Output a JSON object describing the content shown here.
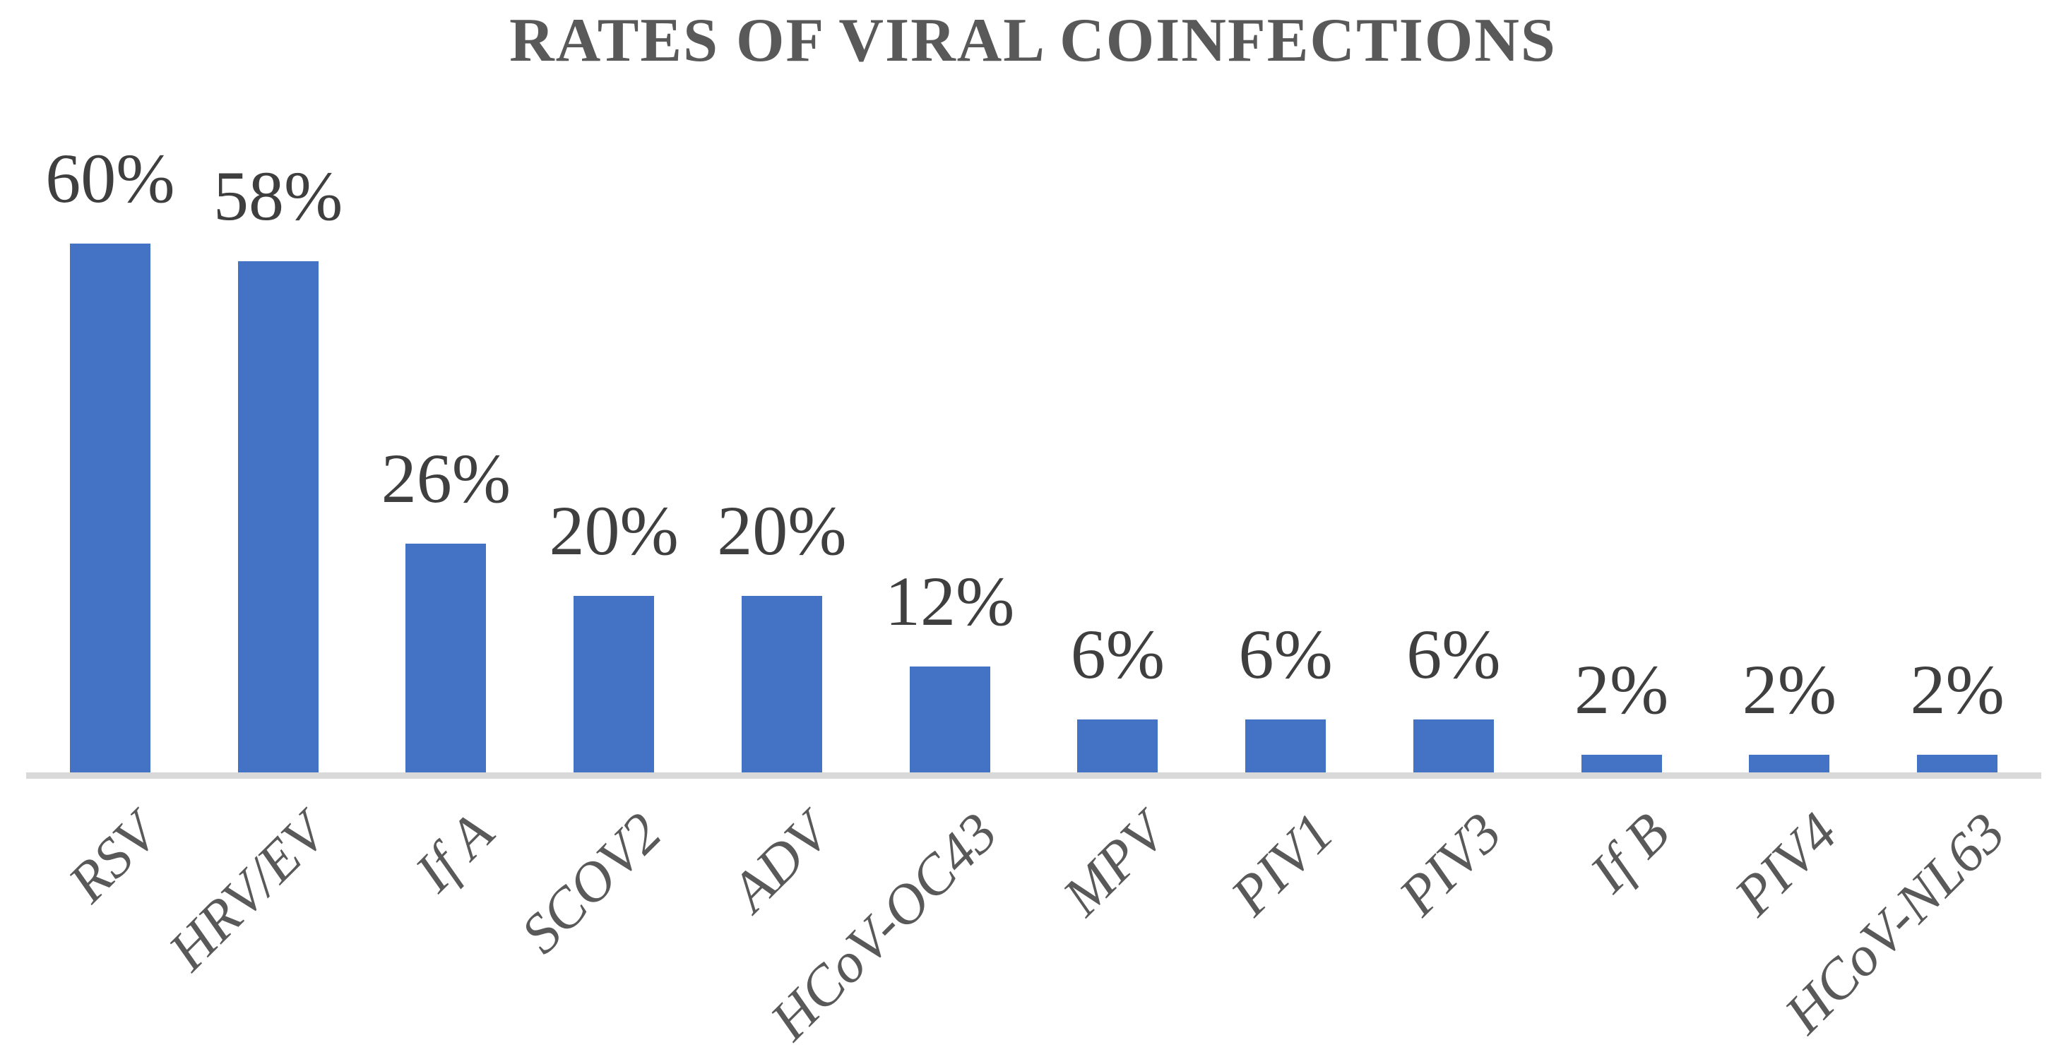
{
  "chart_data": {
    "type": "bar",
    "title": "RATES OF VIRAL COINFECTIONS",
    "categories": [
      "RSV",
      "HRV/EV",
      "If A",
      "SCOV2",
      "ADV",
      "HCoV-OC43",
      "MPV",
      "PIV1",
      "PIV3",
      "If B",
      "PIV4",
      "HCoV-NL63"
    ],
    "values": [
      60,
      58,
      26,
      20,
      20,
      12,
      6,
      6,
      6,
      2,
      2,
      2
    ],
    "value_labels": [
      "60%",
      "58%",
      "26%",
      "20%",
      "20%",
      "12%",
      "6%",
      "6%",
      "6%",
      "2%",
      "2%",
      "2%"
    ],
    "xlabel": "",
    "ylabel": "",
    "ylim": [
      0,
      60
    ],
    "grid": "off",
    "legend": "none",
    "bar_color": "#4472C4",
    "axis_line_color": "#D9D9D9",
    "title_color": "#595959",
    "value_label_color": "#3F3F3F",
    "tick_label_color": "#595959"
  }
}
